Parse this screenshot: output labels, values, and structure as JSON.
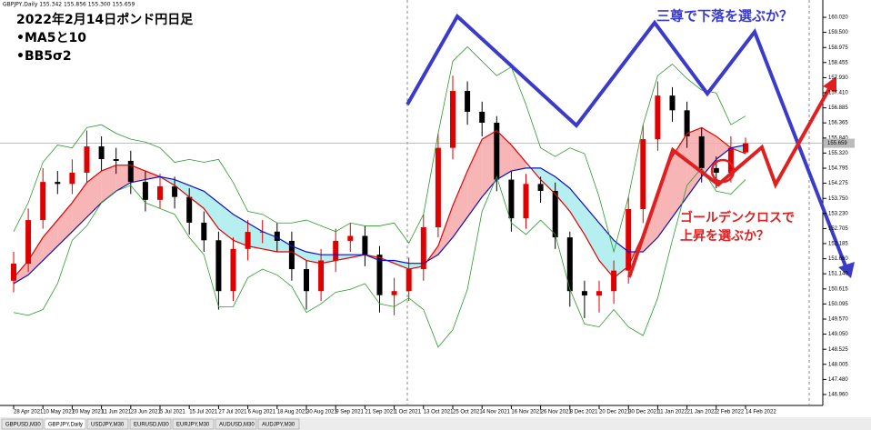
{
  "chart_data": {
    "type": "candlestick",
    "symbol_info": "GBPJPY,Daily  155.342 155.856 155.300 155.659",
    "title": "2022年2月14日ポンド円日足",
    "notes": [
      "•MA5と10",
      "•BB5σ2"
    ],
    "annotations": [
      "三尊で下落を選ぶか？",
      "ゴールデンクロスで",
      "上昇を選ぶか？"
    ],
    "categories": [
      "28 Apr 2021",
      null,
      "10 May 2021",
      null,
      "20 May 2021",
      null,
      "11 Jun 2021",
      null,
      "23 Jun 2021",
      null,
      "5 Jul 2021",
      null,
      "15 Jul 2021",
      null,
      "27 Jul 2021",
      null,
      "6 Aug 2021",
      null,
      "18 Aug 2021",
      null,
      "30 Aug 2021",
      null,
      "9 Sep 2021",
      null,
      "21 Sep 2021",
      null,
      "1 Oct 2021",
      null,
      "13 Oct 2021",
      null,
      "25 Oct 2021",
      null,
      "4 Nov 2021",
      null,
      "16 Nov 2021",
      null,
      "26 Nov 2021",
      null,
      "8 Dec 2021",
      null,
      "20 Dec 2021",
      null,
      "30 Dec 2021",
      null,
      "11 Jan 2022",
      null,
      "21 Jan 2022",
      null,
      "2 Feb 2022",
      null,
      "14 Feb 2022"
    ],
    "open": [
      150.9,
      151.49,
      153.0,
      154.32,
      154.25,
      154.64,
      155.55,
      155.11,
      155.05,
      154.32,
      153.7,
      154.17,
      153.8,
      152.91,
      152.3,
      150.54,
      152.0,
      152.59,
      152.6,
      152.28,
      151.3,
      150.54,
      151.6,
      152.28,
      152.45,
      151.8,
      150.4,
      150.54,
      151.3,
      152.75,
      155.5,
      157.47,
      156.75,
      156.37,
      154.4,
      153.06,
      154.25,
      154.01,
      152.4,
      150.54,
      150.39,
      150.54,
      151.25,
      153.38,
      155.8,
      157.31,
      156.8,
      155.9,
      154.8,
      154.64,
      155.342
    ],
    "high": [
      151.9,
      153.4,
      154.8,
      154.7,
      155.1,
      156.1,
      155.9,
      155.5,
      155.4,
      154.7,
      154.6,
      154.5,
      154.1,
      153.3,
      152.6,
      152.4,
      153.0,
      153.0,
      152.9,
      152.6,
      151.6,
      152.0,
      152.7,
      152.9,
      152.8,
      152.1,
      151.0,
      151.7,
      153.2,
      156.0,
      158.0,
      157.8,
      157.1,
      156.6,
      154.7,
      154.6,
      154.5,
      154.3,
      152.6,
      150.9,
      150.9,
      151.6,
      153.8,
      156.3,
      157.8,
      157.6,
      157.1,
      156.2,
      155.2,
      155.9,
      155.856
    ],
    "low": [
      150.5,
      151.2,
      152.7,
      153.9,
      153.9,
      154.3,
      154.7,
      154.6,
      153.9,
      153.3,
      153.4,
      153.4,
      152.5,
      151.9,
      149.9,
      150.2,
      151.6,
      152.2,
      151.9,
      150.9,
      149.9,
      150.2,
      151.2,
      151.9,
      151.4,
      149.8,
      149.7,
      150.2,
      150.9,
      152.4,
      155.1,
      156.3,
      155.9,
      154.0,
      152.6,
      152.7,
      153.6,
      152.0,
      150.0,
      149.6,
      149.8,
      150.1,
      150.8,
      152.9,
      155.4,
      156.4,
      155.5,
      154.3,
      154.1,
      154.3,
      155.3
    ],
    "close": [
      151.49,
      153.0,
      154.32,
      154.25,
      154.64,
      155.55,
      155.11,
      155.05,
      154.32,
      153.7,
      154.17,
      153.8,
      152.91,
      152.3,
      150.54,
      152.0,
      152.59,
      152.6,
      152.28,
      151.3,
      150.54,
      151.6,
      152.28,
      152.45,
      151.8,
      150.4,
      150.54,
      151.3,
      152.75,
      155.5,
      157.47,
      156.75,
      156.37,
      154.4,
      153.06,
      154.25,
      154.01,
      152.4,
      150.54,
      150.39,
      150.54,
      151.25,
      153.38,
      155.8,
      157.31,
      156.8,
      155.9,
      154.8,
      154.64,
      155.5,
      155.659
    ],
    "up_color": "#e00000",
    "down_color": "#000000",
    "series": [
      {
        "color": "#e00000",
        "values": [
          151.0,
          151.6,
          152.4,
          153.0,
          153.6,
          154.3,
          154.7,
          154.9,
          154.9,
          154.7,
          154.5,
          154.2,
          153.8,
          153.4,
          152.7,
          152.3,
          152.1,
          152.0,
          151.9,
          151.9,
          151.6,
          151.5,
          151.6,
          151.7,
          151.8,
          151.7,
          151.5,
          151.3,
          151.4,
          152.1,
          153.5,
          154.7,
          155.8,
          156.1,
          155.6,
          155.0,
          154.4,
          153.9,
          153.3,
          152.5,
          151.6,
          151.0,
          151.4,
          152.5,
          154.0,
          155.2,
          156.0,
          156.2,
          155.9,
          155.5,
          155.3
        ]
      },
      {
        "color": "#1010c0",
        "values": [
          150.8,
          151.1,
          151.6,
          152.1,
          152.6,
          153.1,
          153.6,
          154.0,
          154.3,
          154.4,
          154.5,
          154.4,
          154.2,
          154.0,
          153.6,
          153.2,
          152.9,
          152.6,
          152.4,
          152.1,
          151.9,
          151.8,
          151.8,
          151.8,
          151.8,
          151.6,
          151.6,
          151.5,
          151.5,
          151.8,
          152.4,
          153.1,
          153.8,
          154.4,
          154.7,
          154.8,
          154.8,
          154.5,
          154.1,
          153.5,
          152.9,
          152.3,
          151.9,
          151.9,
          152.4,
          153.1,
          153.8,
          154.5,
          155.1,
          155.5,
          155.6
        ]
      },
      {
        "color": "#2a9a2a",
        "values": [
          152.6,
          153.6,
          155.0,
          155.6,
          155.5,
          156.2,
          156.3,
          156.0,
          155.8,
          155.7,
          155.5,
          155.0,
          155.1,
          155.0,
          155.1,
          154.3,
          153.3,
          153.2,
          152.9,
          152.9,
          153.0,
          152.8,
          152.6,
          152.9,
          152.8,
          152.8,
          152.9,
          152.2,
          153.2,
          156.0,
          158.5,
          159.0,
          158.5,
          158.0,
          158.3,
          157.0,
          155.5,
          155.2,
          155.5,
          155.3,
          153.8,
          151.9,
          153.8,
          156.3,
          158.0,
          158.4,
          157.9,
          157.5,
          157.4,
          156.3,
          156.6
        ]
      },
      {
        "color": "#2a9a2a",
        "values": [
          149.8,
          149.7,
          149.9,
          150.8,
          152.3,
          152.8,
          153.6,
          154.0,
          154.2,
          153.6,
          153.4,
          153.2,
          152.4,
          151.8,
          150.0,
          150.0,
          151.0,
          151.3,
          151.1,
          150.7,
          149.8,
          150.1,
          150.5,
          150.6,
          150.8,
          150.1,
          150.0,
          150.3,
          149.9,
          148.6,
          149.2,
          150.6,
          153.3,
          154.5,
          152.9,
          152.5,
          153.0,
          152.5,
          150.6,
          149.4,
          149.3,
          149.9,
          149.3,
          149.0,
          150.3,
          152.3,
          154.2,
          154.8,
          154.0,
          153.9,
          154.4
        ]
      }
    ],
    "fill_up_color": "#f6a8a8",
    "fill_down_color": "#a8ecec",
    "price_line": 155.659,
    "ylim": [
      146.58,
      160.62
    ],
    "yticks": [
      {
        "value": 160.02,
        "label": "160.020"
      },
      {
        "value": 159.5,
        "label": "159.500"
      },
      158.975,
      158.455,
      {
        "value": 157.93,
        "label": "157.930"
      },
      {
        "value": 157.41,
        "label": "157.410"
      },
      156.885,
      156.365,
      {
        "value": 155.84,
        "label": "155.840"
      },
      {
        "value": 155.32,
        "label": "155.320"
      },
      154.795,
      154.275,
      {
        "value": 153.75,
        "label": "153.750"
      },
      {
        "value": 153.23,
        "label": "153.230"
      },
      152.705,
      152.185,
      {
        "value": 151.66,
        "label": "151.660"
      },
      {
        "value": 151.14,
        "label": "151.140"
      },
      150.615,
      150.095,
      {
        "value": 149.57,
        "label": "149.570"
      },
      {
        "value": 149.05,
        "label": "149.050"
      },
      148.525,
      148.005,
      {
        "value": 147.48,
        "label": "147.480"
      },
      {
        "value": 146.96,
        "label": "146.960"
      }
    ],
    "grid": false
  },
  "tabs": [
    "GBPUSD,M30",
    "GBPJPY,Daily",
    "USDJPY,M30",
    "EURUSD,M30",
    "EURJPY,M30",
    "AUDUSD,M30",
    "AUDJPY,M30"
  ]
}
